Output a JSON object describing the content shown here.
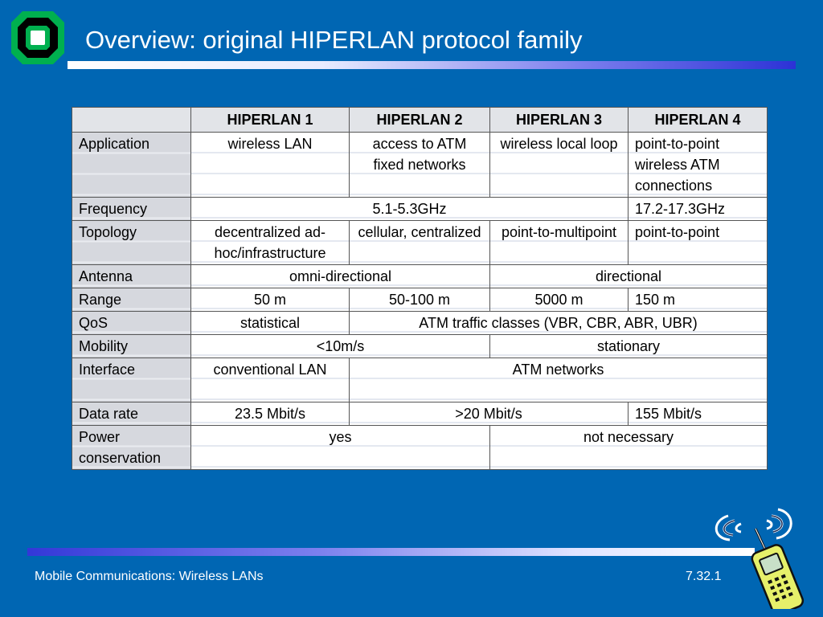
{
  "header": {
    "title": "Overview: original HIPERLAN protocol family"
  },
  "table": {
    "columns": [
      "",
      "HIPERLAN 1",
      "HIPERLAN 2",
      "HIPERLAN 3",
      "HIPERLAN 4"
    ],
    "rows": {
      "application": {
        "label": "Application",
        "h1": "wireless LAN",
        "h2": "access to ATM fixed networks",
        "h3": "wireless local loop",
        "h4": "point-to-point wireless ATM connections"
      },
      "frequency": {
        "label": "Frequency",
        "h1_3": "5.1-5.3GHz",
        "h4": "17.2-17.3GHz"
      },
      "topology": {
        "label": "Topology",
        "h1": "decentralized ad-hoc/infrastructure",
        "h2": "cellular, centralized",
        "h3": "point-to-multipoint",
        "h4": "point-to-point"
      },
      "antenna": {
        "label": "Antenna",
        "h1_2": "omni-directional",
        "h3_4": "directional"
      },
      "range": {
        "label": "Range",
        "h1": "50 m",
        "h2": "50-100 m",
        "h3": "5000 m",
        "h4": "150 m"
      },
      "qos": {
        "label": "QoS",
        "h1": "statistical",
        "h2_4": "ATM traffic classes (VBR, CBR, ABR, UBR)"
      },
      "mobility": {
        "label": "Mobility",
        "h1_2": "<10m/s",
        "h3_4": "stationary"
      },
      "interface": {
        "label": "Interface",
        "h1": "conventional LAN",
        "h2_4": "ATM networks"
      },
      "data_rate": {
        "label": "Data rate",
        "h1": "23.5 Mbit/s",
        "h2_3": ">20 Mbit/s",
        "h4": "155 Mbit/s"
      },
      "power": {
        "label": "Power conservation",
        "h1_2": "yes",
        "h3_4": "not necessary"
      }
    }
  },
  "footer": {
    "left": "Mobile Communications: Wireless LANs",
    "right": "7.32.1"
  },
  "colors": {
    "background": "#0066b3",
    "logo_green": "#00b050"
  },
  "icons": {
    "logo": "university-logo-icon",
    "phone": "wireless-phone-icon"
  }
}
